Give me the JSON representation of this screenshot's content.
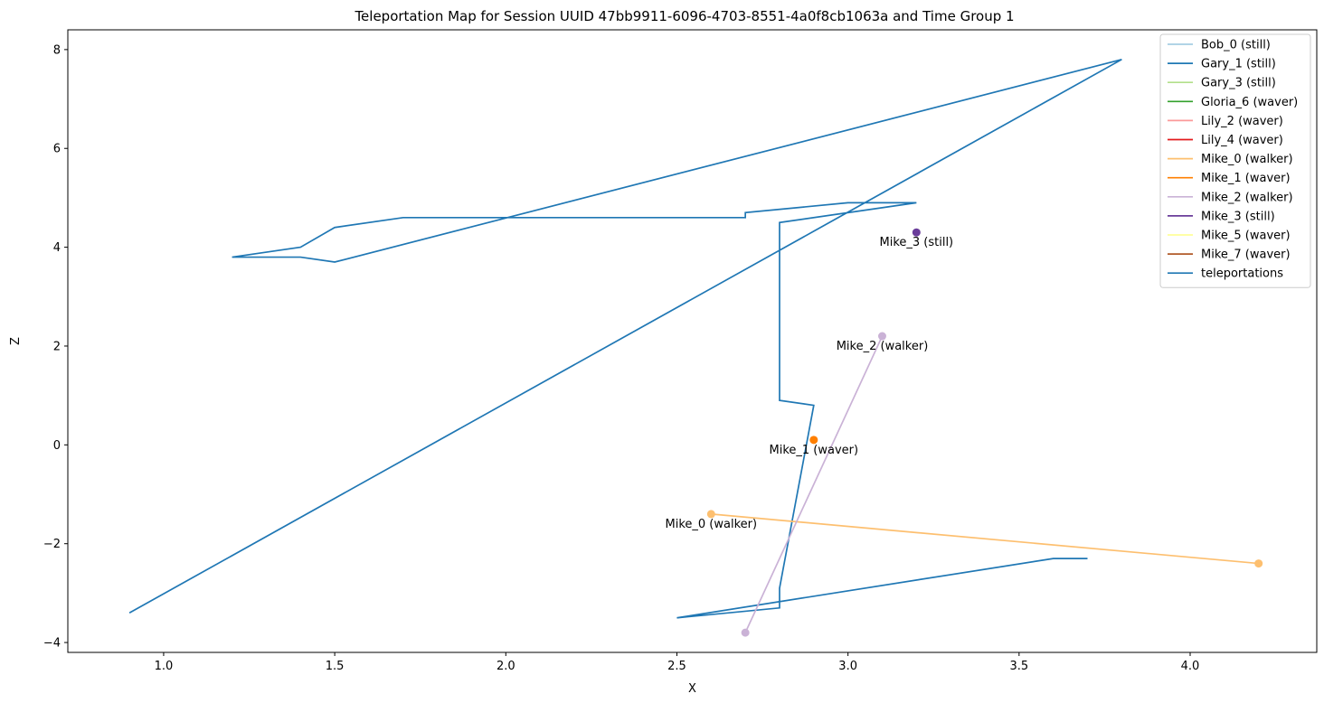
{
  "chart_data": {
    "type": "line",
    "title": "Teleportation Map for Session UUID 47bb9911-6096-4703-8551-4a0f8cb1063a and Time Group 1",
    "xlabel": "X",
    "ylabel": "Z",
    "xlim": [
      0.72,
      4.37
    ],
    "ylim": [
      -4.2,
      8.4
    ],
    "x_ticks": [
      {
        "value": 1.0,
        "label": "1.0"
      },
      {
        "value": 1.5,
        "label": "1.5"
      },
      {
        "value": 2.0,
        "label": "2.0"
      },
      {
        "value": 2.5,
        "label": "2.5"
      },
      {
        "value": 3.0,
        "label": "3.0"
      },
      {
        "value": 3.5,
        "label": "3.5"
      },
      {
        "value": 4.0,
        "label": "4.0"
      }
    ],
    "y_ticks": [
      {
        "value": -4,
        "label": "−4"
      },
      {
        "value": -2,
        "label": "−2"
      },
      {
        "value": 0,
        "label": "0"
      },
      {
        "value": 2,
        "label": "2"
      },
      {
        "value": 4,
        "label": "4"
      },
      {
        "value": 6,
        "label": "6"
      },
      {
        "value": 8,
        "label": "8"
      }
    ],
    "grid": false,
    "legend_position": "top-right",
    "series": [
      {
        "name": "Bob_0 (still)",
        "color": "#a6cee3",
        "points": []
      },
      {
        "name": "Gary_1 (still)",
        "color": "#1f78b4",
        "points": []
      },
      {
        "name": "Gary_3 (still)",
        "color": "#b2df8a",
        "points": []
      },
      {
        "name": "Gloria_6 (waver)",
        "color": "#33a02c",
        "points": []
      },
      {
        "name": "Lily_2 (waver)",
        "color": "#fb9a99",
        "points": []
      },
      {
        "name": "Lily_4 (waver)",
        "color": "#e31a1c",
        "points": []
      },
      {
        "name": "Mike_0 (walker)",
        "color": "#fdbf6f",
        "points": [
          [
            2.6,
            -1.4
          ],
          [
            4.2,
            -2.4
          ]
        ],
        "markers": true,
        "annotation": {
          "text": "Mike_0 (walker)"
        }
      },
      {
        "name": "Mike_1 (waver)",
        "color": "#ff7f00",
        "points": [
          [
            2.9,
            0.1
          ]
        ],
        "markers": true,
        "annotation": {
          "text": "Mike_1 (waver)"
        }
      },
      {
        "name": "Mike_2 (walker)",
        "color": "#cab2d6",
        "points": [
          [
            3.1,
            2.2
          ],
          [
            2.7,
            -3.8
          ]
        ],
        "markers": true,
        "annotation": {
          "text": "Mike_2 (walker)"
        }
      },
      {
        "name": "Mike_3 (still)",
        "color": "#6a3d9a",
        "points": [
          [
            3.2,
            4.3
          ]
        ],
        "markers": true,
        "annotation": {
          "text": "Mike_3 (still)"
        }
      },
      {
        "name": "Mike_5 (waver)",
        "color": "#ffff99",
        "points": []
      },
      {
        "name": "Mike_7 (waver)",
        "color": "#b15928",
        "points": []
      },
      {
        "name": "teleportations",
        "color": "#1f77b4",
        "points": [
          [
            3.7,
            -2.3
          ],
          [
            3.6,
            -2.3
          ],
          [
            2.5,
            -3.5
          ],
          [
            2.8,
            -3.3
          ],
          [
            2.8,
            -2.9
          ],
          [
            2.9,
            0.8
          ],
          [
            2.8,
            0.9
          ],
          [
            2.8,
            4.5
          ],
          [
            3.2,
            4.9
          ],
          [
            3.0,
            4.9
          ],
          [
            2.7,
            4.7
          ],
          [
            2.7,
            4.6
          ],
          [
            1.7,
            4.6
          ],
          [
            1.5,
            4.4
          ],
          [
            1.4,
            4.0
          ],
          [
            1.2,
            3.8
          ],
          [
            1.4,
            3.8
          ],
          [
            1.5,
            3.7
          ],
          [
            3.8,
            7.8
          ],
          [
            0.9,
            -3.4
          ]
        ]
      }
    ]
  }
}
